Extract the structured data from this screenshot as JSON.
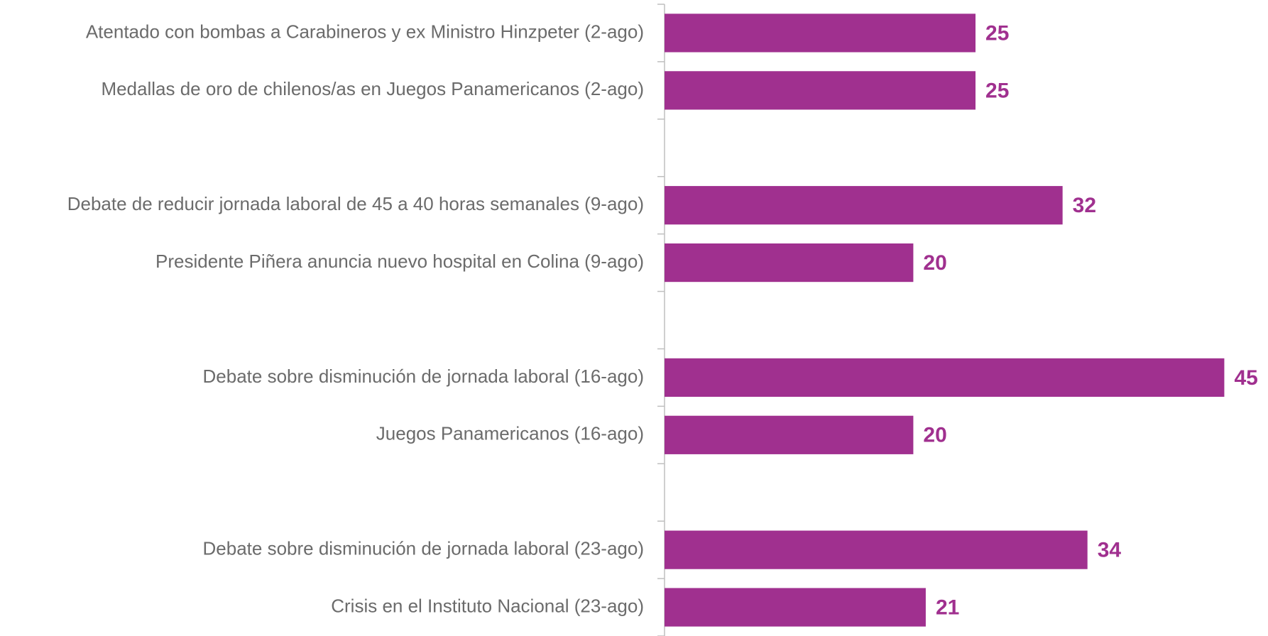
{
  "chart_data": {
    "type": "barh",
    "categories": [
      "Atentado con bombas a Carabineros y ex Ministro Hinzpeter (2-ago)",
      "Medallas de oro de chilenos/as en Juegos Panamericanos (2-ago)",
      null,
      "Debate de reducir jornada laboral de 45 a 40 horas semanales (9-ago)",
      "Presidente Piñera anuncia nuevo hospital en Colina (9-ago)",
      null,
      "Debate sobre disminución de jornada laboral  (16-ago)",
      "Juegos Panamericanos (16-ago)",
      null,
      "Debate sobre disminución de jornada laboral (23-ago)",
      "Crisis en el Instituto Nacional (23-ago)"
    ],
    "values": [
      25,
      25,
      null,
      32,
      20,
      null,
      45,
      20,
      null,
      34,
      21
    ],
    "color": "#a0308f",
    "xlim": [
      0,
      48
    ]
  }
}
